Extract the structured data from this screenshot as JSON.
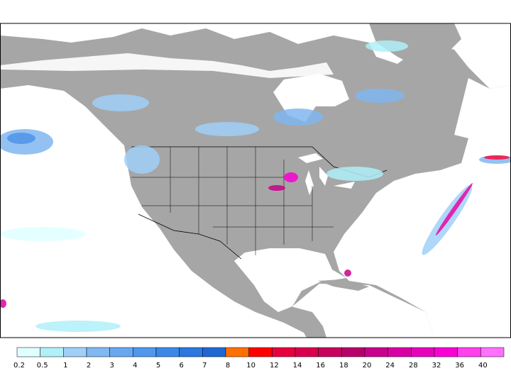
{
  "colorbar": {
    "labels": [
      0.2,
      0.5,
      1,
      2,
      3,
      4,
      5,
      6,
      7,
      8,
      10,
      12,
      14,
      16,
      18,
      20,
      24,
      28,
      32,
      36,
      40
    ],
    "colors": [
      "#e0ffff",
      "#b0f0f8",
      "#a0d0f8",
      "#80b8f0",
      "#68a8f0",
      "#4f98ee",
      "#3c88e8",
      "#2c78e0",
      "#1f68d4",
      "#ff7000",
      "#ff0000",
      "#e8003c",
      "#d8004e",
      "#c8005c",
      "#b8006a",
      "#c8008c",
      "#d800a4",
      "#e800bc",
      "#f800d4",
      "#ff40ec",
      "#ff70ff"
    ]
  }
}
